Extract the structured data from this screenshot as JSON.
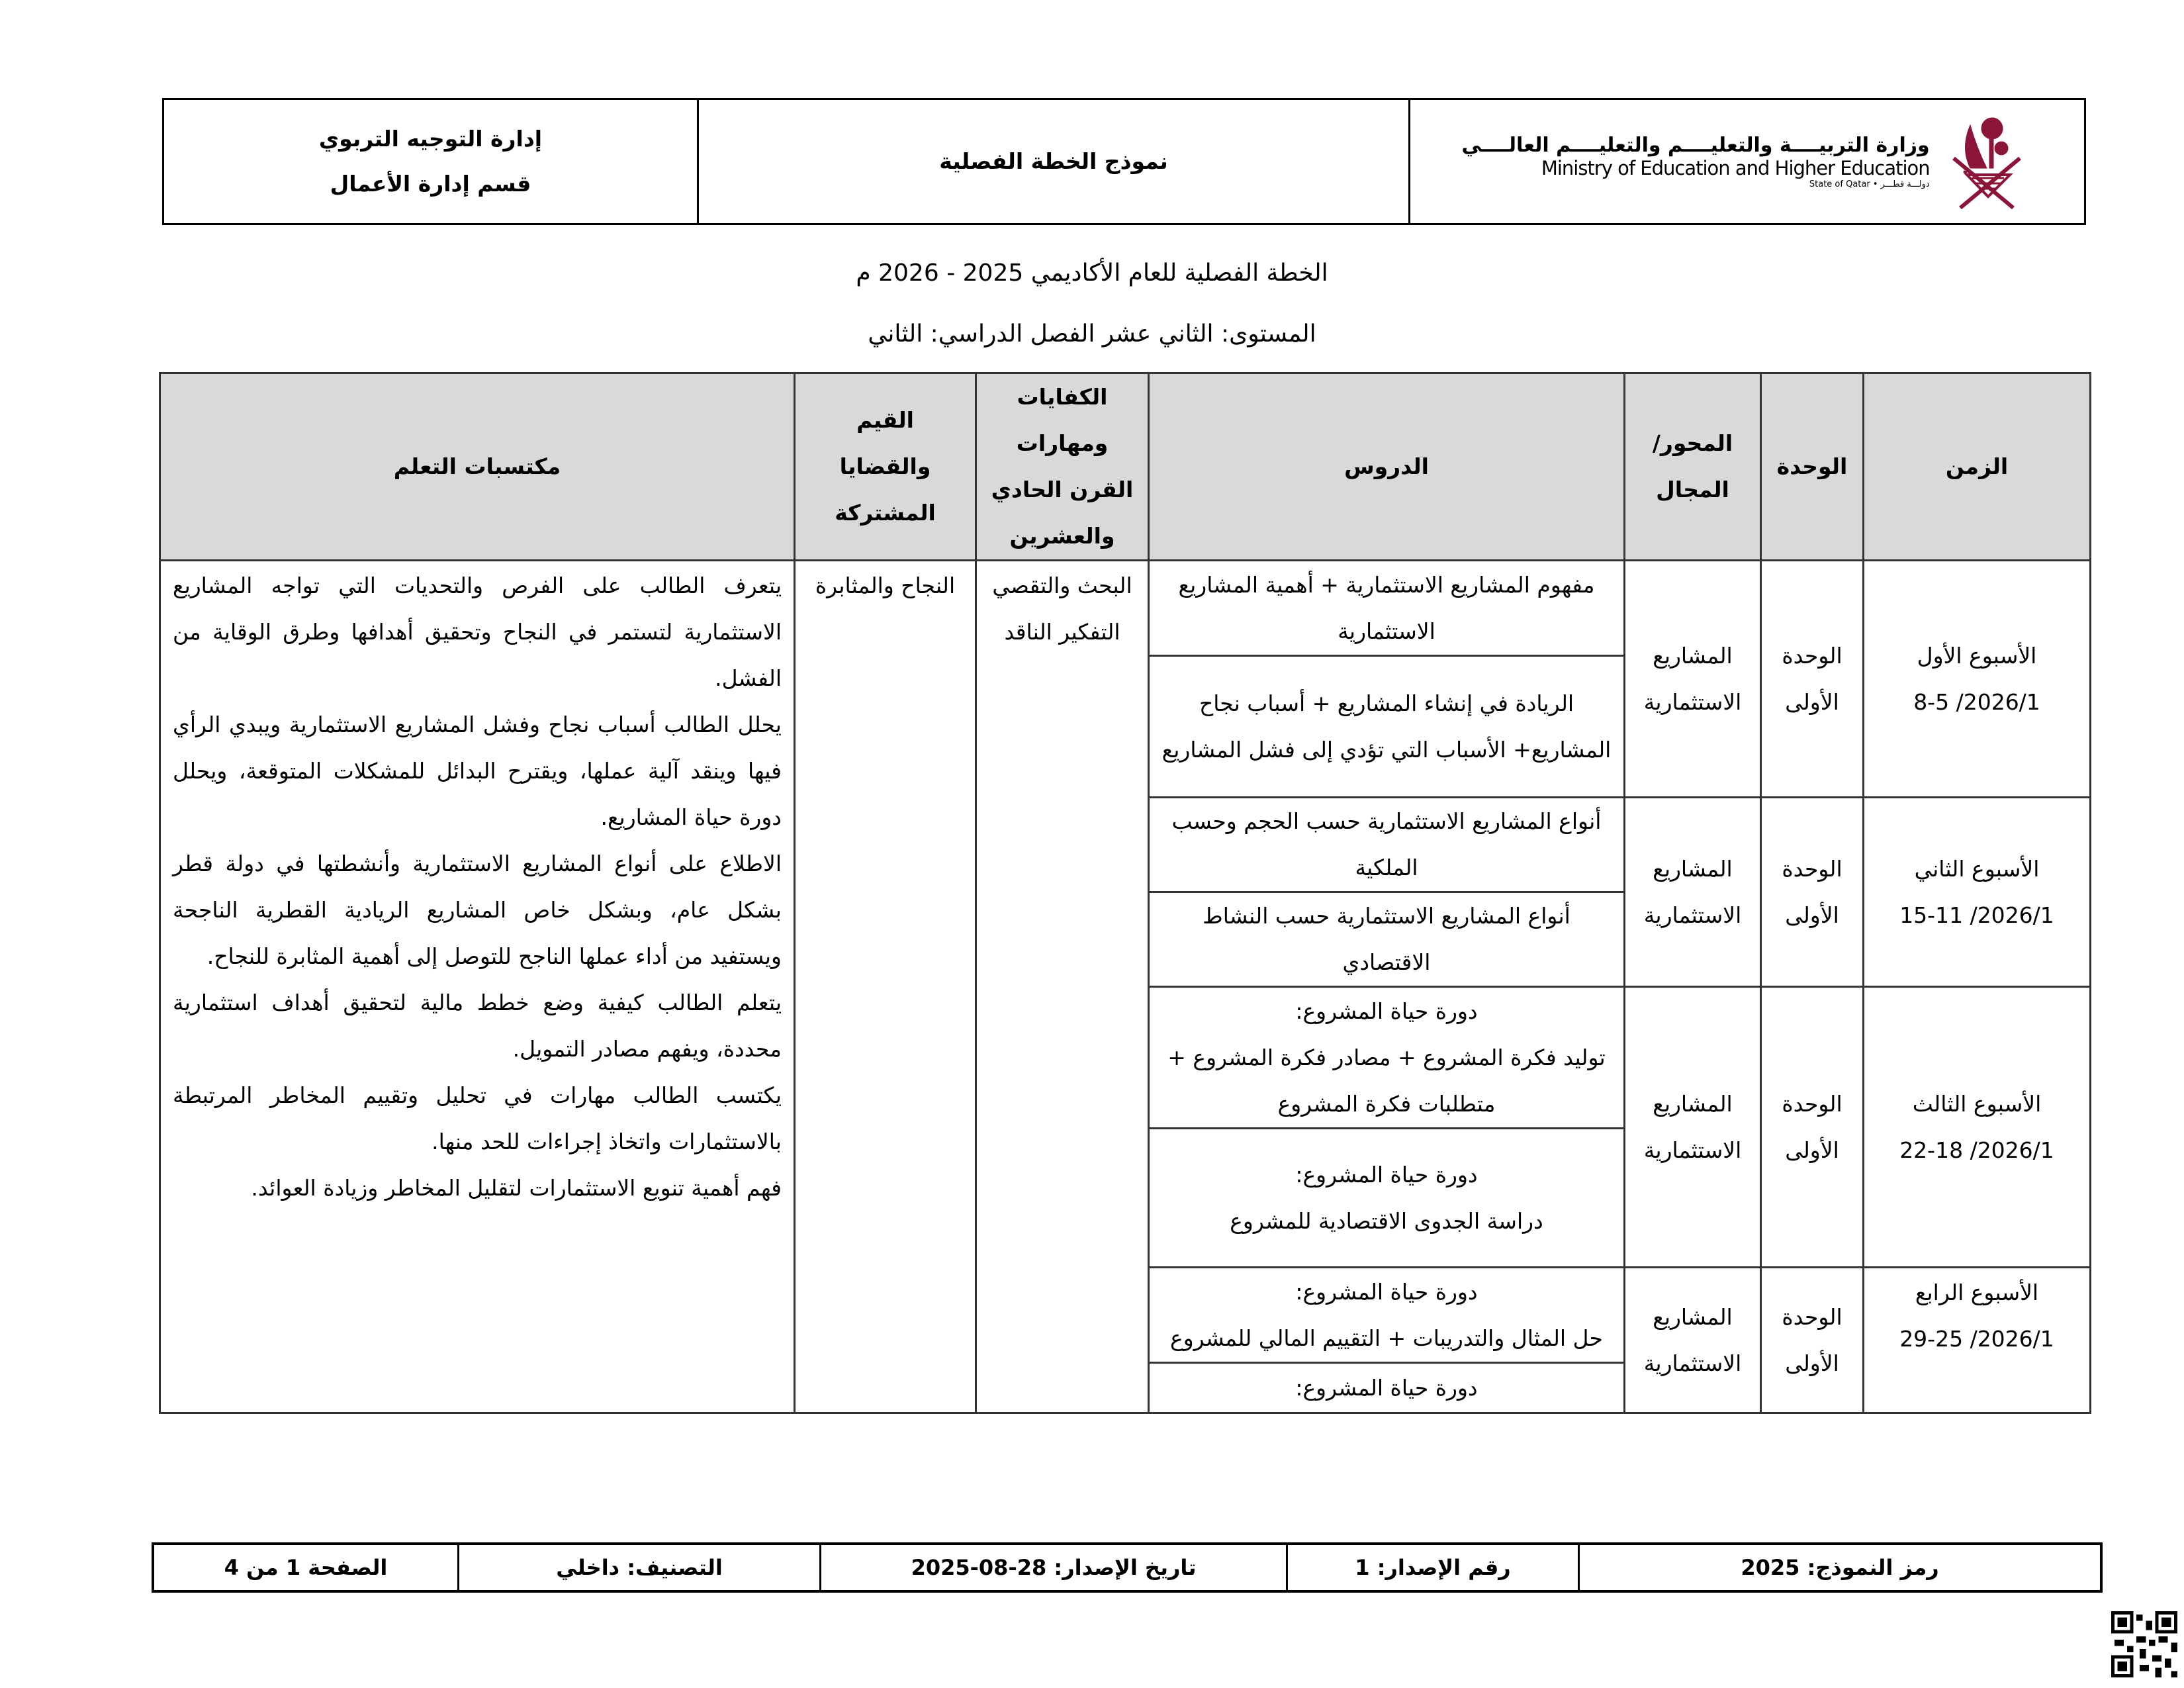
{
  "header": {
    "department_line1": "إدارة التوجيه التربوي",
    "department_line2": "قسم إدارة الأعمال",
    "form_title": "نموذج الخطة الفصلية",
    "ministry_ar": "وزارة التربيــــة والتعليــــم والتعليــــم العالــــي",
    "ministry_en": "Ministry of Education and Higher Education",
    "state": "State of Qatar • دولـــة قطـــر",
    "logo_color": "#8a1538"
  },
  "titles": {
    "plan_title": "الخطة الفصلية للعام الأكاديمي 2025 - 2026 م",
    "level": "المستوى: الثاني عشر الفصل الدراسي: الثاني"
  },
  "table": {
    "headers": {
      "time": "الزمن",
      "unit": "الوحدة",
      "axis": "المحور/ المجال",
      "lessons": "الدروس",
      "competencies": "الكفايات ومهارات القرن الحادي والعشرين",
      "values": "القيم والقضايا المشتركة",
      "outcomes": "مكتسبات التعلم"
    },
    "weeks": [
      {
        "week": "الأسبوع الأول",
        "dates": "2026/1/ 8-5",
        "unit": "الوحدة الأولى",
        "axis": "المشاريع الاستثمارية",
        "lessons": [
          "مفهوم المشاريع الاستثمارية + أهمية المشاريع الاستثمارية",
          "الريادة في إنشاء المشاريع + أسباب نجاح المشاريع+  الأسباب التي تؤدي إلى فشل المشاريع"
        ]
      },
      {
        "week": "الأسبوع الثاني",
        "dates": "2026/1/ 15-11",
        "unit": "الوحدة الأولى",
        "axis": "المشاريع الاستثمارية",
        "lessons": [
          "أنواع المشاريع الاستثمارية حسب الحجم وحسب الملكية",
          "أنواع المشاريع الاستثمارية حسب النشاط الاقتصادي"
        ]
      },
      {
        "week": "الأسبوع الثالث",
        "dates": "2026/1/ 22-18",
        "unit": "الوحدة الأولى",
        "axis": "المشاريع الاستثمارية",
        "lessons": [
          "دورة حياة المشروع:",
          "توليد فكرة المشروع + مصادر فكرة المشروع + متطلبات فكرة المشروع",
          "دورة حياة المشروع:",
          "دراسة الجدوى الاقتصادية للمشروع"
        ]
      },
      {
        "week": "الأسبوع الرابع",
        "dates": "2026/1/ 29-25",
        "unit": "الوحدة الأولى",
        "axis": "المشاريع الاستثمارية",
        "lessons": [
          "دورة حياة المشروع:",
          "حل المثال والتدريبات + التقييم المالي للمشروع",
          "دورة حياة المشروع:"
        ]
      }
    ],
    "competencies": "البحث والتقصي التفكير الناقد",
    "values": "النجاح والمثابرة",
    "outcomes": [
      "يتعرف الطالب على الفرص والتحديات التي تواجه المشاريع الاستثمارية لتستمر في النجاح وتحقيق أهدافها وطرق الوقاية من الفشل.",
      "يحلل الطالب أسباب نجاح وفشل المشاريع الاستثمارية ويبدي الرأي فيها وينقد آلية عملها، ويقترح البدائل للمشكلات المتوقعة، ويحلل دورة حياة المشاريع.",
      "الاطلاع على أنواع المشاريع الاستثمارية وأنشطتها في دولة قطر بشكل عام، وبشكل خاص المشاريع الريادية القطرية الناجحة ويستفيد من أداء عملها الناجح للتوصل إلى أهمية المثابرة للنجاح.",
      "يتعلم الطالب كيفية وضع خطط مالية لتحقيق أهداف استثمارية محددة، ويفهم مصادر التمويل.",
      "يكتسب الطالب مهارات في تحليل وتقييم المخاطر المرتبطة بالاستثمارات واتخاذ إجراءات للحد منها.",
      "فهم أهمية تنويع الاستثمارات لتقليل المخاطر وزيادة العوائد."
    ]
  },
  "footer": {
    "form_code": "رمز النموذج: 2025",
    "version": "رقم الإصدار: 1",
    "issue_date": "تاريخ الإصدار: 28-08-2025",
    "classification": "التصنيف: داخلي",
    "page": "الصفحة 1 من 4"
  }
}
